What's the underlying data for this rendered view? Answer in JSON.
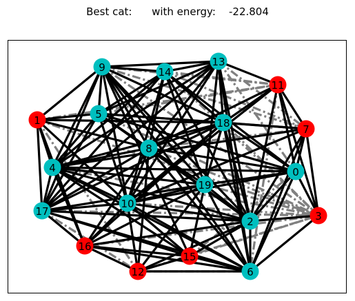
{
  "title": {
    "prefix": "Best cat:",
    "middle": "with energy:",
    "energy": "-22.804"
  },
  "colors": {
    "red_node": "#ff0000",
    "cyan_node": "#00bfbf",
    "solid_edge": "#000000",
    "dashed_edge": "#808080"
  },
  "nodes": [
    {
      "id": "0",
      "color": "cyan"
    },
    {
      "id": "1",
      "color": "red"
    },
    {
      "id": "2",
      "color": "cyan"
    },
    {
      "id": "3",
      "color": "red"
    },
    {
      "id": "4",
      "color": "cyan"
    },
    {
      "id": "5",
      "color": "cyan"
    },
    {
      "id": "6",
      "color": "cyan"
    },
    {
      "id": "7",
      "color": "red"
    },
    {
      "id": "8",
      "color": "cyan"
    },
    {
      "id": "9",
      "color": "cyan"
    },
    {
      "id": "10",
      "color": "cyan"
    },
    {
      "id": "11",
      "color": "red"
    },
    {
      "id": "12",
      "color": "red"
    },
    {
      "id": "13",
      "color": "cyan"
    },
    {
      "id": "14",
      "color": "cyan"
    },
    {
      "id": "15",
      "color": "red"
    },
    {
      "id": "16",
      "color": "red"
    },
    {
      "id": "17",
      "color": "cyan"
    },
    {
      "id": "18",
      "color": "cyan"
    },
    {
      "id": "19",
      "color": "cyan"
    }
  ],
  "edges_solid": [
    [
      "9",
      "13"
    ],
    [
      "9",
      "14"
    ],
    [
      "9",
      "5"
    ],
    [
      "9",
      "1"
    ],
    [
      "9",
      "4"
    ],
    [
      "9",
      "17"
    ],
    [
      "9",
      "8"
    ],
    [
      "9",
      "10"
    ],
    [
      "9",
      "18"
    ],
    [
      "9",
      "19"
    ],
    [
      "9",
      "2"
    ],
    [
      "9",
      "15"
    ],
    [
      "9",
      "6"
    ],
    [
      "14",
      "13"
    ],
    [
      "14",
      "5"
    ],
    [
      "14",
      "4"
    ],
    [
      "14",
      "8"
    ],
    [
      "14",
      "10"
    ],
    [
      "14",
      "18"
    ],
    [
      "14",
      "19"
    ],
    [
      "14",
      "2"
    ],
    [
      "14",
      "0"
    ],
    [
      "14",
      "17"
    ],
    [
      "13",
      "11"
    ],
    [
      "13",
      "5"
    ],
    [
      "13",
      "8"
    ],
    [
      "13",
      "18"
    ],
    [
      "13",
      "19"
    ],
    [
      "13",
      "2"
    ],
    [
      "13",
      "10"
    ],
    [
      "13",
      "4"
    ],
    [
      "13",
      "6"
    ],
    [
      "13",
      "17"
    ],
    [
      "11",
      "7"
    ],
    [
      "11",
      "0"
    ],
    [
      "11",
      "18"
    ],
    [
      "11",
      "3"
    ],
    [
      "11",
      "2"
    ],
    [
      "11",
      "10"
    ],
    [
      "11",
      "8"
    ],
    [
      "1",
      "5"
    ],
    [
      "1",
      "4"
    ],
    [
      "1",
      "17"
    ],
    [
      "1",
      "18"
    ],
    [
      "1",
      "10"
    ],
    [
      "1",
      "8"
    ],
    [
      "1",
      "16"
    ],
    [
      "5",
      "18"
    ],
    [
      "5",
      "8"
    ],
    [
      "5",
      "4"
    ],
    [
      "5",
      "17"
    ],
    [
      "5",
      "10"
    ],
    [
      "5",
      "0"
    ],
    [
      "5",
      "7"
    ],
    [
      "5",
      "2"
    ],
    [
      "18",
      "7"
    ],
    [
      "18",
      "0"
    ],
    [
      "18",
      "8"
    ],
    [
      "18",
      "4"
    ],
    [
      "18",
      "10"
    ],
    [
      "18",
      "2"
    ],
    [
      "18",
      "6"
    ],
    [
      "18",
      "17"
    ],
    [
      "18",
      "19"
    ],
    [
      "18",
      "16"
    ],
    [
      "7",
      "3"
    ],
    [
      "7",
      "0"
    ],
    [
      "7",
      "2"
    ],
    [
      "7",
      "4"
    ],
    [
      "7",
      "10"
    ],
    [
      "7",
      "6"
    ],
    [
      "8",
      "4"
    ],
    [
      "8",
      "17"
    ],
    [
      "8",
      "10"
    ],
    [
      "8",
      "19"
    ],
    [
      "8",
      "0"
    ],
    [
      "8",
      "2"
    ],
    [
      "8",
      "6"
    ],
    [
      "8",
      "16"
    ],
    [
      "8",
      "12"
    ],
    [
      "4",
      "17"
    ],
    [
      "4",
      "10"
    ],
    [
      "4",
      "0"
    ],
    [
      "4",
      "2"
    ],
    [
      "4",
      "19"
    ],
    [
      "4",
      "16"
    ],
    [
      "4",
      "6"
    ],
    [
      "4",
      "15"
    ],
    [
      "0",
      "19"
    ],
    [
      "0",
      "2"
    ],
    [
      "0",
      "10"
    ],
    [
      "0",
      "3"
    ],
    [
      "0",
      "6"
    ],
    [
      "19",
      "10"
    ],
    [
      "19",
      "2"
    ],
    [
      "19",
      "6"
    ],
    [
      "19",
      "16"
    ],
    [
      "19",
      "17"
    ],
    [
      "19",
      "15"
    ],
    [
      "19",
      "12"
    ],
    [
      "17",
      "10"
    ],
    [
      "17",
      "16"
    ],
    [
      "17",
      "2"
    ],
    [
      "17",
      "6"
    ],
    [
      "17",
      "15"
    ],
    [
      "10",
      "2"
    ],
    [
      "10",
      "6"
    ],
    [
      "10",
      "16"
    ],
    [
      "10",
      "15"
    ],
    [
      "10",
      "12"
    ],
    [
      "2",
      "3"
    ],
    [
      "2",
      "6"
    ],
    [
      "2",
      "15"
    ],
    [
      "2",
      "12"
    ],
    [
      "2",
      "16"
    ],
    [
      "3",
      "6"
    ],
    [
      "16",
      "12"
    ],
    [
      "16",
      "15"
    ],
    [
      "16",
      "6"
    ],
    [
      "12",
      "15"
    ],
    [
      "12",
      "6"
    ],
    [
      "15",
      "6"
    ]
  ],
  "edges_dashed": [
    [
      "9",
      "11"
    ],
    [
      "9",
      "7"
    ],
    [
      "14",
      "11"
    ],
    [
      "14",
      "7"
    ],
    [
      "13",
      "7"
    ],
    [
      "1",
      "9"
    ],
    [
      "1",
      "12"
    ],
    [
      "1",
      "11"
    ],
    [
      "5",
      "11"
    ],
    [
      "17",
      "12"
    ],
    [
      "17",
      "3"
    ],
    [
      "4",
      "3"
    ],
    [
      "12",
      "6"
    ],
    [
      "12",
      "3"
    ],
    [
      "16",
      "2"
    ],
    [
      "16",
      "3"
    ],
    [
      "15",
      "3"
    ],
    [
      "15",
      "0"
    ],
    [
      "6",
      "0"
    ],
    [
      "10",
      "3"
    ],
    [
      "10",
      "0"
    ],
    [
      "19",
      "3"
    ],
    [
      "8",
      "3"
    ],
    [
      "8",
      "7"
    ],
    [
      "5",
      "3"
    ],
    [
      "1",
      "3"
    ],
    [
      "9",
      "3"
    ],
    [
      "14",
      "3"
    ],
    [
      "11",
      "6"
    ],
    [
      "13",
      "0"
    ],
    [
      "18",
      "3"
    ]
  ]
}
